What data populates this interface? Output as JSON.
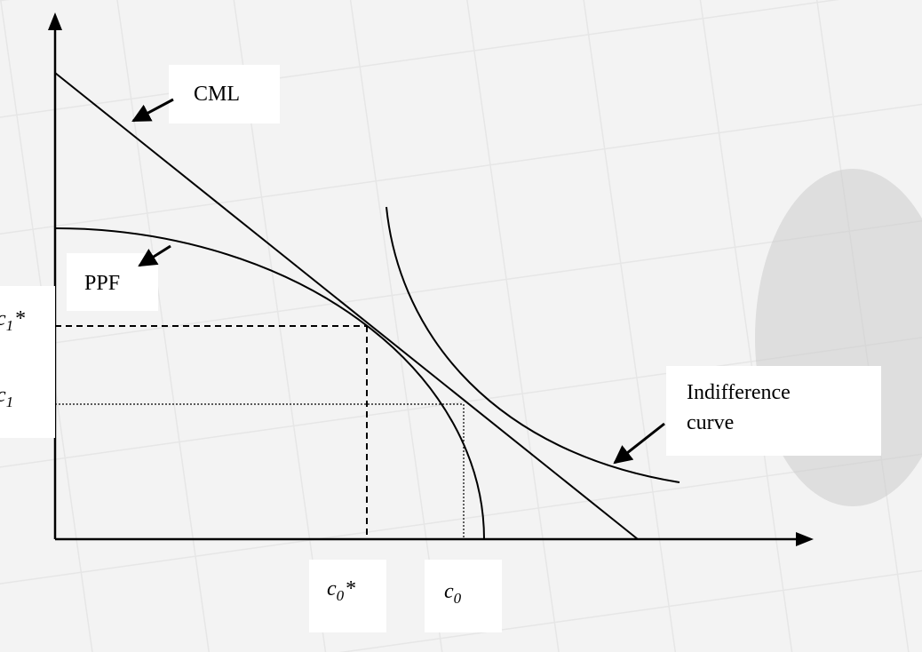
{
  "labels": {
    "cml": "CML",
    "ppf": "PPF",
    "indifference_curve": [
      "Indifference",
      "curve"
    ],
    "c1_star": {
      "symbol": "c",
      "subscript": "1",
      "suffix": "*"
    },
    "c1": {
      "symbol": "c",
      "subscript": "1"
    },
    "c0_star": {
      "symbol": "c",
      "subscript": "0",
      "suffix": "*"
    },
    "c0": {
      "symbol": "c",
      "subscript": "0"
    }
  }
}
